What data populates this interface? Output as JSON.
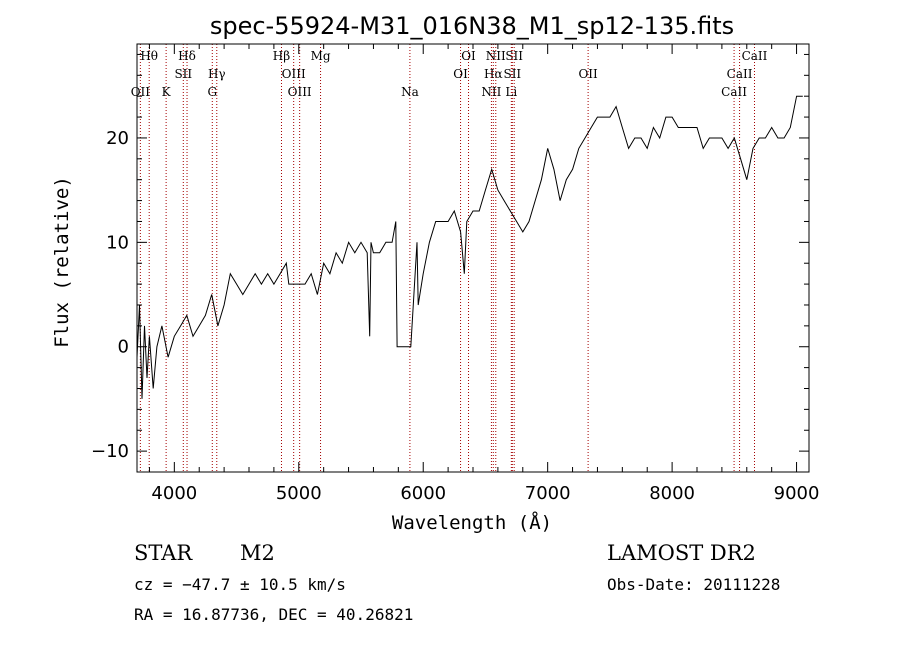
{
  "chart_data": {
    "type": "line",
    "title": "spec-55924-M31_016N38_M1_sp12-135.fits",
    "xlabel": "Wavelength (Å)",
    "ylabel": "Flux (relative)",
    "xlim": [
      3700,
      9100
    ],
    "ylim": [
      -12,
      29
    ],
    "xticks": [
      4000,
      5000,
      6000,
      7000,
      8000,
      9000
    ],
    "yticks": [
      -10,
      0,
      10,
      20
    ],
    "grid": false,
    "series": [
      {
        "x": [
          3700,
          3720,
          3740,
          3760,
          3780,
          3800,
          3830,
          3860,
          3900,
          3950,
          4000,
          4050,
          4100,
          4150,
          4200,
          4250,
          4300,
          4350,
          4400,
          4450,
          4500,
          4550,
          4600,
          4650,
          4700,
          4750,
          4800,
          4850,
          4900,
          4920,
          4950,
          5000,
          5050,
          5100,
          5150,
          5200,
          5250,
          5300,
          5350,
          5400,
          5450,
          5500,
          5550,
          5570,
          5580,
          5600,
          5650,
          5700,
          5750,
          5780,
          5790,
          5800,
          5900,
          5950,
          5960,
          6000,
          6050,
          6100,
          6150,
          6200,
          6250,
          6300,
          6330,
          6350,
          6400,
          6450,
          6500,
          6550,
          6600,
          6650,
          6700,
          6750,
          6800,
          6850,
          6900,
          6950,
          7000,
          7050,
          7100,
          7150,
          7200,
          7250,
          7300,
          7350,
          7400,
          7450,
          7500,
          7550,
          7600,
          7650,
          7700,
          7750,
          7800,
          7850,
          7900,
          7950,
          8000,
          8050,
          8100,
          8150,
          8200,
          8250,
          8300,
          8350,
          8400,
          8450,
          8500,
          8550,
          8600,
          8650,
          8700,
          8750,
          8800,
          8850,
          8900,
          8950,
          9000,
          9050
        ],
        "y": [
          -1,
          4,
          -5,
          2,
          -3,
          1,
          -4,
          0,
          2,
          -1,
          1,
          2,
          3,
          1,
          2,
          3,
          5,
          2,
          4,
          7,
          6,
          5,
          6,
          7,
          6,
          7,
          6,
          7,
          8,
          6,
          6,
          6,
          6,
          7,
          5,
          8,
          7,
          9,
          8,
          10,
          9,
          10,
          9,
          1,
          10,
          9,
          9,
          10,
          10,
          12,
          0,
          0,
          0,
          10,
          4,
          7,
          10,
          12,
          12,
          12,
          13,
          11,
          7,
          12,
          13,
          13,
          15,
          17,
          15,
          14,
          13,
          12,
          11,
          12,
          14,
          16,
          19,
          17,
          14,
          16,
          17,
          19,
          20,
          21,
          22,
          22,
          22,
          23,
          21,
          19,
          20,
          20,
          19,
          21,
          20,
          22,
          22,
          21,
          21,
          21,
          21,
          19,
          20,
          20,
          20,
          19,
          20,
          18,
          16,
          19,
          20,
          20,
          21,
          20,
          20,
          21,
          24,
          24
        ]
      }
    ],
    "line_markers": [
      {
        "label": "Hθ",
        "x": 3798,
        "row": 0
      },
      {
        "label": "OII",
        "x": 3727,
        "row": 2
      },
      {
        "label": "K",
        "x": 3934,
        "row": 2
      },
      {
        "label": "Hδ",
        "x": 4102,
        "row": 0
      },
      {
        "label": "SII",
        "x": 4072,
        "row": 1
      },
      {
        "label": "Hγ",
        "x": 4341,
        "row": 1
      },
      {
        "label": "G",
        "x": 4305,
        "row": 2
      },
      {
        "label": "Hβ",
        "x": 4861,
        "row": 0
      },
      {
        "label": "OIII",
        "x": 4959,
        "row": 1
      },
      {
        "label": "OIII",
        "x": 5007,
        "row": 2
      },
      {
        "label": "Mg",
        "x": 5175,
        "row": 0
      },
      {
        "label": "Na",
        "x": 5893,
        "row": 2
      },
      {
        "label": "OI",
        "x": 6364,
        "row": 0
      },
      {
        "label": "OI",
        "x": 6300,
        "row": 1
      },
      {
        "label": "NII",
        "x": 6583,
        "row": 0
      },
      {
        "label": "Hα",
        "x": 6563,
        "row": 1
      },
      {
        "label": "NII",
        "x": 6548,
        "row": 2
      },
      {
        "label": "SII",
        "x": 6731,
        "row": 0
      },
      {
        "label": "SII",
        "x": 6716,
        "row": 1
      },
      {
        "label": "Li",
        "x": 6708,
        "row": 2
      },
      {
        "label": "OII",
        "x": 7325,
        "row": 1
      },
      {
        "label": "CaII",
        "x": 8662,
        "row": 0
      },
      {
        "label": "CaII",
        "x": 8542,
        "row": 1
      },
      {
        "label": "CaII",
        "x": 8498,
        "row": 2
      }
    ]
  },
  "info": {
    "object_class": "STAR",
    "subclass": "M2",
    "survey": "LAMOST DR2",
    "cz": "cz = −47.7 ± 10.5 km/s",
    "obs_date": "Obs-Date: 20111228",
    "radec": "RA =  16.87736, DEC =  40.26821"
  }
}
